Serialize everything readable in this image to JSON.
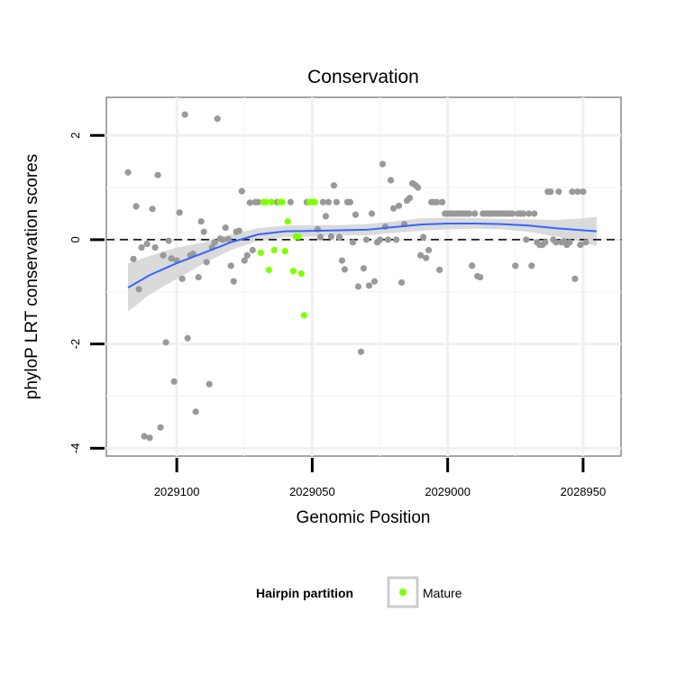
{
  "chart_data": {
    "type": "scatter",
    "title": "Conservation",
    "xlabel": "Genomic Position",
    "ylabel": "phyloP LRT conservation scores",
    "x_reversed": true,
    "xlim": [
      2029126,
      2028936
    ],
    "ylim": [
      -4.15,
      2.73
    ],
    "x_ticks": [
      {
        "value": 2029100,
        "label": "2029100"
      },
      {
        "value": 2029050,
        "label": "2029050"
      },
      {
        "value": 2029000,
        "label": "2029000"
      },
      {
        "value": 2028950,
        "label": "2028950"
      }
    ],
    "y_ticks": [
      {
        "value": 2,
        "label": "2"
      },
      {
        "value": 0,
        "label": "0"
      },
      {
        "value": -2,
        "label": "-2"
      },
      {
        "value": -4,
        "label": "-4"
      }
    ],
    "grid": true,
    "reference_line": {
      "y": 0,
      "style": "dashed"
    },
    "legend": {
      "title": "Hairpin partition",
      "placement": "bottom",
      "entries": [
        {
          "label": "Mature",
          "color": "#7fff00"
        }
      ]
    },
    "colors": {
      "other": "#999999",
      "mature": "#7fff00",
      "smooth": "#3366ff",
      "band": "#d3d3d3"
    },
    "series": [
      {
        "points": [
          [
            2029118,
            1.29
          ],
          [
            2029116,
            -0.37
          ],
          [
            2029115,
            0.64
          ],
          [
            2029114,
            -0.95
          ],
          [
            2029113,
            -0.15
          ],
          [
            2029112,
            -3.77
          ],
          [
            2029111,
            -0.08
          ],
          [
            2029110,
            -3.8
          ],
          [
            2029109,
            0.59
          ],
          [
            2029108,
            -0.15
          ],
          [
            2029107,
            1.24
          ],
          [
            2029106,
            -3.6
          ],
          [
            2029105,
            -0.3
          ],
          [
            2029104,
            -1.97
          ],
          [
            2029103,
            -0.02
          ],
          [
            2029102,
            -0.36
          ],
          [
            2029101,
            -2.72
          ],
          [
            2029100,
            -0.4
          ],
          [
            2029099,
            0.52
          ],
          [
            2029098,
            -0.75
          ],
          [
            2029097,
            2.4
          ],
          [
            2029096,
            -1.89
          ],
          [
            2029095,
            -0.3
          ],
          [
            2029094,
            -0.27
          ],
          [
            2029093,
            -3.3
          ],
          [
            2029092,
            -0.72
          ],
          [
            2029091,
            0.35
          ],
          [
            2029090,
            0.15
          ],
          [
            2029089,
            -0.43
          ],
          [
            2029088,
            -2.77
          ],
          [
            2029087,
            -0.15
          ],
          [
            2029086,
            -0.05
          ],
          [
            2029085,
            2.32
          ],
          [
            2029084,
            0.02
          ],
          [
            2029083,
            0.0
          ],
          [
            2029082,
            0.23
          ],
          [
            2029081,
            0.01
          ],
          [
            2029080,
            -0.5
          ],
          [
            2029079,
            -0.8
          ],
          [
            2029078,
            0.15
          ],
          [
            2029077,
            0.17
          ],
          [
            2029076,
            0.93
          ],
          [
            2029075,
            -0.4
          ],
          [
            2029074,
            -0.3
          ],
          [
            2029073,
            0.71
          ],
          [
            2029072,
            -0.2
          ],
          [
            2029071,
            0.72
          ],
          [
            2029070,
            0.72
          ],
          [
            2029063,
            0.72
          ],
          [
            2029058,
            0.72
          ],
          [
            2029052,
            0.72
          ],
          [
            2029048,
            0.2
          ],
          [
            2029047,
            0.05
          ],
          [
            2029046,
            0.72
          ],
          [
            2029045,
            0.45
          ],
          [
            2029044,
            0.72
          ],
          [
            2029043,
            0.06
          ],
          [
            2029042,
            1.04
          ],
          [
            2029041,
            0.72
          ],
          [
            2029040,
            0.05
          ],
          [
            2029039,
            -0.4
          ],
          [
            2029038,
            -0.57
          ],
          [
            2029037,
            0.72
          ],
          [
            2029036,
            0.72
          ],
          [
            2029035,
            -0.05
          ],
          [
            2029034,
            0.48
          ],
          [
            2029033,
            -0.9
          ],
          [
            2029032,
            -2.15
          ],
          [
            2029031,
            -0.55
          ],
          [
            2029030,
            0.0
          ],
          [
            2029029,
            -0.88
          ],
          [
            2029028,
            0.5
          ],
          [
            2029027,
            -0.8
          ],
          [
            2029026,
            -0.05
          ],
          [
            2029025,
            0.0
          ],
          [
            2029024,
            1.45
          ],
          [
            2029023,
            0.25
          ],
          [
            2029022,
            0.0
          ],
          [
            2029021,
            1.14
          ],
          [
            2029020,
            0.6
          ],
          [
            2029019,
            0.0
          ],
          [
            2029018,
            0.65
          ],
          [
            2029017,
            -0.82
          ],
          [
            2029016,
            0.3
          ],
          [
            2029015,
            0.75
          ],
          [
            2029014,
            0.8
          ],
          [
            2029013,
            1.08
          ],
          [
            2029012,
            1.05
          ],
          [
            2029011,
            1.0
          ],
          [
            2029010,
            -0.3
          ],
          [
            2029009,
            0.05
          ],
          [
            2029008,
            -0.35
          ],
          [
            2029007,
            -0.2
          ],
          [
            2029006,
            0.72
          ],
          [
            2029005,
            0.72
          ],
          [
            2029004,
            0.72
          ],
          [
            2029003,
            -0.58
          ],
          [
            2029002,
            0.72
          ],
          [
            2029001,
            0.5
          ],
          [
            2029000,
            0.5
          ],
          [
            2028999,
            0.5
          ],
          [
            2028998,
            0.5
          ],
          [
            2028997,
            0.5
          ],
          [
            2028996,
            0.5
          ],
          [
            2028995,
            0.5
          ],
          [
            2028994,
            0.5
          ],
          [
            2028993,
            0.5
          ],
          [
            2028992,
            0.5
          ],
          [
            2028991,
            -0.5
          ],
          [
            2028990,
            0.5
          ],
          [
            2028989,
            -0.7
          ],
          [
            2028988,
            -0.72
          ],
          [
            2028987,
            0.5
          ],
          [
            2028986,
            0.5
          ],
          [
            2028985,
            0.5
          ],
          [
            2028984,
            0.5
          ],
          [
            2028983,
            0.5
          ],
          [
            2028982,
            0.5
          ],
          [
            2028981,
            0.5
          ],
          [
            2028980,
            0.5
          ],
          [
            2028979,
            0.5
          ],
          [
            2028978,
            0.5
          ],
          [
            2028977,
            0.5
          ],
          [
            2028976,
            0.5
          ],
          [
            2028975,
            -0.5
          ],
          [
            2028974,
            0.5
          ],
          [
            2028973,
            0.5
          ],
          [
            2028972,
            0.5
          ],
          [
            2028971,
            0.0
          ],
          [
            2028970,
            0.5
          ],
          [
            2028969,
            -0.5
          ],
          [
            2028968,
            0.5
          ],
          [
            2028967,
            -0.05
          ],
          [
            2028966,
            -0.1
          ],
          [
            2028965,
            -0.1
          ],
          [
            2028964,
            -0.05
          ],
          [
            2028963,
            0.92
          ],
          [
            2028962,
            0.92
          ],
          [
            2028961,
            0.0
          ],
          [
            2028960,
            -0.05
          ],
          [
            2028959,
            0.92
          ],
          [
            2028958,
            -0.05
          ],
          [
            2028957,
            -0.03
          ],
          [
            2028956,
            -0.1
          ],
          [
            2028955,
            -0.05
          ],
          [
            2028954,
            0.92
          ],
          [
            2028953,
            -0.75
          ],
          [
            2028952,
            0.92
          ],
          [
            2028951,
            -0.1
          ],
          [
            2028950,
            0.92
          ],
          [
            2028949,
            -0.05
          ]
        ]
      },
      {
        "name": "Mature",
        "points": [
          [
            2029069,
            -0.25
          ],
          [
            2029068,
            0.72
          ],
          [
            2029067,
            0.72
          ],
          [
            2029066,
            -0.58
          ],
          [
            2029065,
            0.72
          ],
          [
            2029064,
            -0.2
          ],
          [
            2029062,
            0.72
          ],
          [
            2029061,
            0.72
          ],
          [
            2029060,
            -0.22
          ],
          [
            2029059,
            0.35
          ],
          [
            2029057,
            -0.6
          ],
          [
            2029056,
            0.06
          ],
          [
            2029055,
            0.06
          ],
          [
            2029054,
            -0.65
          ],
          [
            2029053,
            -1.45
          ],
          [
            2029051,
            0.72
          ],
          [
            2029050,
            0.72
          ],
          [
            2029049,
            0.72
          ]
        ]
      }
    ],
    "smooth": {
      "x": [
        2029118,
        2029110,
        2029100,
        2029090,
        2029080,
        2029070,
        2029060,
        2029050,
        2029040,
        2029030,
        2029020,
        2029010,
        2029000,
        2028990,
        2028980,
        2028970,
        2028960,
        2028950,
        2028945
      ],
      "y": [
        -0.92,
        -0.68,
        -0.45,
        -0.25,
        -0.05,
        0.1,
        0.16,
        0.17,
        0.18,
        0.19,
        0.24,
        0.29,
        0.31,
        0.31,
        0.3,
        0.27,
        0.22,
        0.18,
        0.16
      ],
      "lower": [
        -1.38,
        -1.05,
        -0.75,
        -0.45,
        -0.2,
        -0.02,
        0.05,
        0.06,
        0.08,
        0.08,
        0.13,
        0.17,
        0.2,
        0.21,
        0.2,
        0.15,
        0.06,
        -0.05,
        -0.12
      ],
      "upper": [
        -0.46,
        -0.31,
        -0.15,
        -0.05,
        0.1,
        0.22,
        0.27,
        0.28,
        0.28,
        0.3,
        0.35,
        0.41,
        0.42,
        0.41,
        0.4,
        0.39,
        0.38,
        0.41,
        0.44
      ]
    }
  }
}
